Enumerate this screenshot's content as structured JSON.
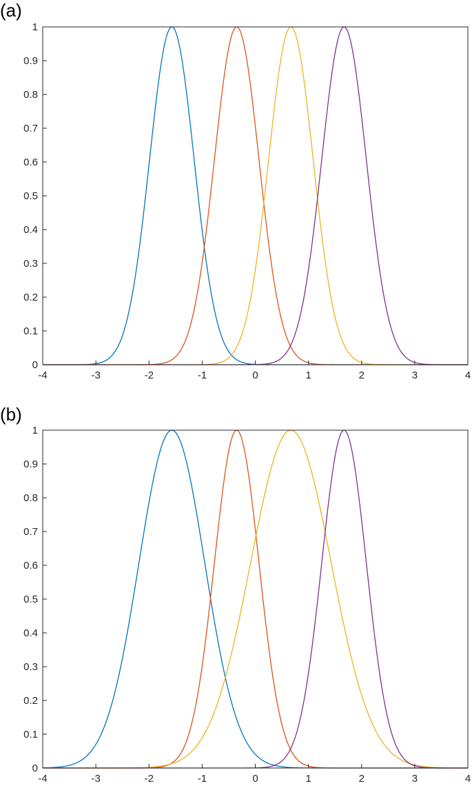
{
  "figure": {
    "panel_labels": [
      "(a)",
      "(b)"
    ]
  },
  "colors": {
    "series": [
      "#0072BD",
      "#D95319",
      "#EDB120",
      "#7E2F8E"
    ],
    "axis": "#262626"
  },
  "chart_data": [
    {
      "type": "line",
      "panel": "(a)",
      "title": "",
      "xlabel": "",
      "ylabel": "",
      "xlim": [
        -4,
        4
      ],
      "ylim": [
        0,
        1
      ],
      "xticks": [
        -4,
        -3,
        -2,
        -1,
        0,
        1,
        2,
        3,
        4
      ],
      "xtick_labels": [
        "-4",
        "-3",
        "-2",
        "-1",
        "0",
        "1",
        "2",
        "3",
        "4"
      ],
      "yticks": [
        0,
        0.1,
        0.2,
        0.3,
        0.4,
        0.5,
        0.6,
        0.7,
        0.8,
        0.9,
        1
      ],
      "ytick_labels": [
        "0",
        "0.1",
        "0.2",
        "0.3",
        "0.4",
        "0.5",
        "0.6",
        "0.7",
        "0.8",
        "0.9",
        "1"
      ],
      "grid": false,
      "legend": "none",
      "series": [
        {
          "shape": "gaussian",
          "center": -1.57,
          "sigma": 0.42
        },
        {
          "shape": "gaussian",
          "center": -0.35,
          "sigma": 0.42
        },
        {
          "shape": "gaussian",
          "center": 0.67,
          "sigma": 0.42
        },
        {
          "shape": "gaussian",
          "center": 1.67,
          "sigma": 0.42
        }
      ]
    },
    {
      "type": "line",
      "panel": "(b)",
      "title": "",
      "xlabel": "",
      "ylabel": "",
      "xlim": [
        -4,
        4
      ],
      "ylim": [
        0,
        1
      ],
      "xticks": [
        -4,
        -3,
        -2,
        -1,
        0,
        1,
        2,
        3,
        4
      ],
      "xtick_labels": [
        "-4",
        "-3",
        "-2",
        "-1",
        "0",
        "1",
        "2",
        "3",
        "4"
      ],
      "yticks": [
        0,
        0.1,
        0.2,
        0.3,
        0.4,
        0.5,
        0.6,
        0.7,
        0.8,
        0.9,
        1
      ],
      "ytick_labels": [
        "0",
        "0.1",
        "0.2",
        "0.3",
        "0.4",
        "0.5",
        "0.6",
        "0.7",
        "0.8",
        "0.9",
        "1"
      ],
      "grid": false,
      "legend": "none",
      "series": [
        {
          "shape": "gaussian",
          "center": -1.57,
          "sigma": 0.62
        },
        {
          "shape": "gaussian",
          "center": -0.35,
          "sigma": 0.42
        },
        {
          "shape": "gaussian",
          "center": 0.67,
          "sigma": 0.76
        },
        {
          "shape": "gaussian",
          "center": 1.67,
          "sigma": 0.42
        }
      ]
    }
  ]
}
